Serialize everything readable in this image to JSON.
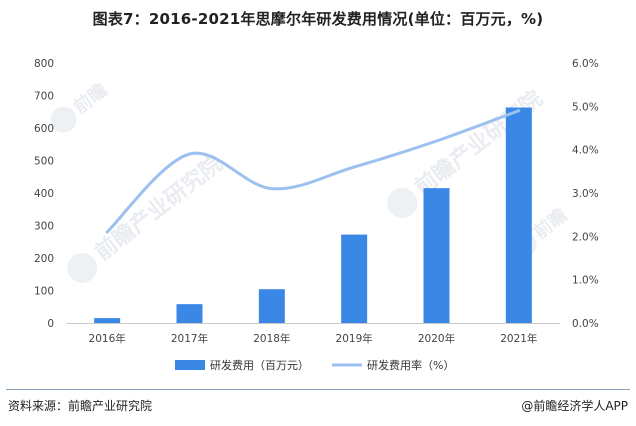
{
  "title": "图表7：2016-2021年思摩尔年研发费用情况(单位：百万元，%)",
  "watermark": {
    "brand": "前瞻产业研究院",
    "logo_text": "前瞻"
  },
  "footer": {
    "source": "资料来源：前瞻产业研究院",
    "credit": "@前瞻经济学人APP"
  },
  "colors": {
    "bar": "#3b87e6",
    "line": "#9cc0ef",
    "axis": "#c8c8c8",
    "separator": "#8aa0b8"
  },
  "chart_data": {
    "type": "bar",
    "categories": [
      "2016年",
      "2017年",
      "2018年",
      "2019年",
      "2020年",
      "2021年"
    ],
    "series": [
      {
        "name": "研发费用（百万元）",
        "type": "bar",
        "axis": "left",
        "values": [
          15,
          58,
          104,
          272,
          415,
          663
        ]
      },
      {
        "name": "研发费用率（%）",
        "type": "line",
        "axis": "right",
        "values": [
          2.1,
          3.9,
          3.1,
          3.6,
          4.2,
          4.9
        ]
      }
    ],
    "ylim": [
      0,
      800
    ],
    "y_ticks": [
      "0",
      "100",
      "200",
      "300",
      "400",
      "500",
      "600",
      "700",
      "800"
    ],
    "y2lim": [
      0,
      6
    ],
    "y2_ticks": [
      "0.0%",
      "1.0%",
      "2.0%",
      "3.0%",
      "4.0%",
      "5.0%",
      "6.0%"
    ],
    "legend_position": "bottom",
    "grid": false
  }
}
